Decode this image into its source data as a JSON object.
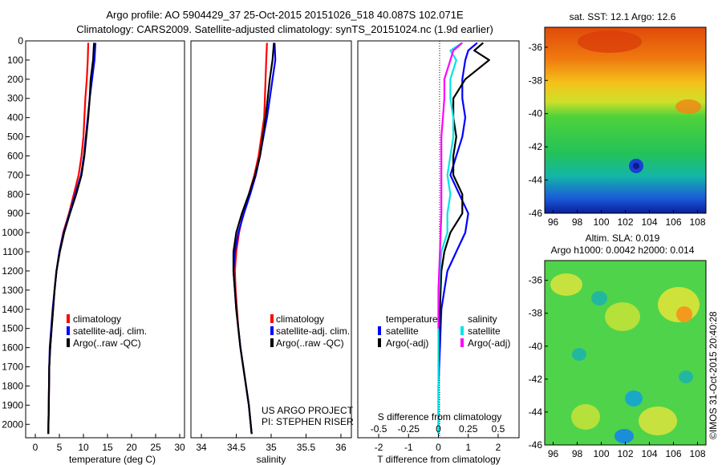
{
  "header": {
    "line1": "Argo profile: AO 5904429_37 25-Oct-2015 20151026_518 40.087S 102.071E",
    "line2": "Climatology: CARS2009. Satellite-adjusted climatology: synTS_20151024.nc (1.9d earlier)"
  },
  "credit": "US ARGO PROJECT",
  "pi": "PI: STEPHEN RISER",
  "stamp": "©IMOS 31-Oct-2015 20:40:28",
  "colors": {
    "climatology": "#ff0000",
    "satellite": "#0000ff",
    "argo": "#000000",
    "sat_salinity": "#00e5e5",
    "argo_adj_salinity": "#ff00ff"
  },
  "chart_data": [
    {
      "type": "line",
      "xlabel": "temperature (deg C)",
      "xlim": [
        -2,
        31
      ],
      "xticks": [
        0,
        5,
        10,
        15,
        20,
        25,
        30
      ],
      "ylim": [
        0,
        2070
      ],
      "yticks": [
        0,
        100,
        200,
        300,
        400,
        500,
        600,
        700,
        800,
        900,
        1000,
        1100,
        1200,
        1300,
        1400,
        1500,
        1600,
        1700,
        1800,
        1900,
        2000
      ],
      "legend": [
        "climatology",
        "satellite-adj. clim.",
        "Argo(..raw -QC)"
      ],
      "series": [
        {
          "color": "#ff0000",
          "x": [
            11.0,
            10.9,
            10.7,
            10.4,
            10.2,
            10.0,
            9.6,
            9.0,
            8.0,
            7.0,
            5.8,
            5.0,
            4.4,
            4.0,
            3.7,
            3.4,
            3.1,
            2.9,
            2.8,
            2.7
          ],
          "y": [
            10,
            100,
            200,
            300,
            400,
            500,
            600,
            700,
            800,
            900,
            1000,
            1100,
            1200,
            1300,
            1400,
            1500,
            1600,
            1700,
            1900,
            2050
          ]
        },
        {
          "color": "#0000ff",
          "x": [
            12.5,
            12.3,
            11.8,
            11.3,
            10.9,
            10.5,
            10.1,
            9.5,
            8.3,
            7.1,
            5.9,
            5.0,
            4.4,
            4.0,
            3.6,
            3.3,
            3.0,
            2.9,
            2.8,
            2.7
          ],
          "y": [
            10,
            100,
            200,
            300,
            400,
            500,
            600,
            700,
            800,
            900,
            1000,
            1100,
            1200,
            1300,
            1400,
            1500,
            1600,
            1700,
            1900,
            2050
          ]
        },
        {
          "color": "#000000",
          "x": [
            12.2,
            12.0,
            11.5,
            11.3,
            11.0,
            10.6,
            10.2,
            9.6,
            8.5,
            7.2,
            6.0,
            5.1,
            4.4,
            4.0,
            3.7,
            3.4,
            3.1,
            2.9,
            2.8,
            2.7
          ],
          "y": [
            10,
            100,
            200,
            300,
            400,
            500,
            600,
            700,
            800,
            900,
            1000,
            1100,
            1200,
            1300,
            1400,
            1500,
            1600,
            1700,
            1900,
            2050
          ]
        }
      ]
    },
    {
      "type": "line",
      "xlabel": "salinity",
      "xlim": [
        33.85,
        36.15
      ],
      "xticks": [
        34,
        34.5,
        35,
        35.5,
        36
      ],
      "xticklabels": [
        "34",
        "34.5",
        "35",
        "35.5",
        "36"
      ],
      "ylim": [
        0,
        2070
      ],
      "legend": [
        "climatology",
        "satellite-adj. clim.",
        "Argo(..raw -QC)"
      ],
      "series": [
        {
          "color": "#ff0000",
          "x": [
            34.94,
            34.93,
            34.92,
            34.91,
            34.9,
            34.86,
            34.82,
            34.76,
            34.68,
            34.6,
            34.54,
            34.5,
            34.48,
            34.49,
            34.51,
            34.53,
            34.56,
            34.6,
            34.64,
            34.68,
            34.72
          ],
          "y": [
            10,
            100,
            200,
            300,
            400,
            500,
            600,
            700,
            800,
            900,
            1000,
            1100,
            1200,
            1300,
            1400,
            1500,
            1600,
            1700,
            1800,
            1900,
            2050
          ]
        },
        {
          "color": "#0000ff",
          "x": [
            35.05,
            35.06,
            35.02,
            34.98,
            34.94,
            34.89,
            34.84,
            34.78,
            34.7,
            34.61,
            34.53,
            34.48,
            34.46,
            34.48,
            34.5,
            34.53,
            34.56,
            34.6,
            34.64,
            34.68,
            34.72
          ],
          "y": [
            10,
            100,
            200,
            300,
            400,
            500,
            600,
            700,
            800,
            900,
            1000,
            1100,
            1200,
            1300,
            1400,
            1500,
            1600,
            1700,
            1800,
            1900,
            2050
          ]
        },
        {
          "color": "#000000",
          "x": [
            35.04,
            35.02,
            34.98,
            34.95,
            34.92,
            34.88,
            34.84,
            34.77,
            34.68,
            34.58,
            34.5,
            34.46,
            34.46,
            34.48,
            34.5,
            34.53,
            34.56,
            34.6,
            34.64,
            34.68,
            34.72
          ],
          "y": [
            10,
            100,
            200,
            300,
            400,
            500,
            600,
            700,
            800,
            900,
            1000,
            1100,
            1200,
            1300,
            1400,
            1500,
            1600,
            1700,
            1800,
            1900,
            2050
          ]
        }
      ]
    },
    {
      "type": "line",
      "xlabel": "T difference from climatology",
      "xlabel_top": "S difference from climatology",
      "xlim": [
        -2.7,
        2.7
      ],
      "xticks": [
        -2,
        -1,
        0,
        1,
        2
      ],
      "xticklabels": [
        "-2",
        "-1",
        "0",
        "1",
        "2"
      ],
      "s_ticks": [
        "-0.5",
        "-0.25",
        "0",
        "0.25",
        "0.5"
      ],
      "ylim": [
        0,
        2070
      ],
      "legend": {
        "temperature_title": "temperature",
        "salinity_title": "salinity",
        "temperature": [
          "satellite",
          "Argo(-adj)"
        ],
        "salinity": [
          "satellite",
          "Argo(-adj)"
        ]
      },
      "series": [
        {
          "color": "#0000ff",
          "x": [
            1.3,
            1.0,
            0.9,
            0.8,
            0.8,
            0.9,
            0.8,
            0.6,
            0.4,
            0.7,
            1.0,
            0.9,
            0.6,
            0.3,
            0.2,
            0.1,
            0.05,
            0.0,
            0.0
          ],
          "y": [
            10,
            50,
            100,
            200,
            300,
            400,
            500,
            600,
            700,
            800,
            900,
            1000,
            1100,
            1200,
            1300,
            1400,
            1600,
            1800,
            2050
          ]
        },
        {
          "color": "#000000",
          "x": [
            1.5,
            1.2,
            1.7,
            0.9,
            0.5,
            0.5,
            0.6,
            0.5,
            0.5,
            0.8,
            0.8,
            0.4,
            0.2,
            0.1,
            0.05,
            0.0
          ],
          "y": [
            10,
            50,
            100,
            200,
            300,
            400,
            500,
            600,
            700,
            800,
            900,
            1000,
            1100,
            1200,
            1400,
            1700
          ]
        },
        {
          "color": "#00e5e5",
          "x": [
            0.8,
            0.4,
            0.6,
            0.4,
            0.4,
            0.5,
            0.5,
            0.4,
            0.3,
            0.4,
            0.3,
            0.3,
            0.1,
            0.05,
            0.0,
            0.0,
            0.0
          ],
          "y": [
            10,
            50,
            100,
            200,
            300,
            400,
            500,
            600,
            700,
            800,
            900,
            1000,
            1100,
            1200,
            1400,
            1700,
            2050
          ]
        },
        {
          "color": "#ff00ff",
          "x": [
            0.8,
            0.5,
            0.4,
            0.2,
            0.2,
            0.15,
            0.1,
            0.1,
            0.1,
            0.1,
            0.1,
            0.05,
            0.0,
            0.0
          ],
          "y": [
            10,
            50,
            100,
            200,
            300,
            400,
            500,
            600,
            700,
            800,
            900,
            1100,
            1300,
            1500
          ]
        }
      ]
    },
    {
      "type": "heatmap",
      "title": "sat. SST: 12.1  Argo: 12.6",
      "xticks": [
        96,
        98,
        100,
        102,
        104,
        106,
        108
      ],
      "yticks": [
        -36,
        -38,
        -40,
        -42,
        -44,
        -46
      ],
      "xlim": [
        95.3,
        108.7
      ],
      "ylim": [
        -46,
        -34.8
      ],
      "marker": {
        "lon": 102.07,
        "lat": -40.09
      }
    },
    {
      "type": "heatmap",
      "title": "Altim. SLA: 0.019",
      "subtitle": "Argo h1000: 0.0042 h2000: 0.014",
      "xticks": [
        96,
        98,
        100,
        102,
        104,
        106,
        108
      ],
      "yticks": [
        -36,
        -38,
        -40,
        -42,
        -44,
        -46
      ],
      "xlim": [
        95.3,
        108.7
      ],
      "ylim": [
        -46,
        -34.8
      ],
      "marker": {
        "lon": 102.07,
        "lat": -40.09
      }
    }
  ]
}
